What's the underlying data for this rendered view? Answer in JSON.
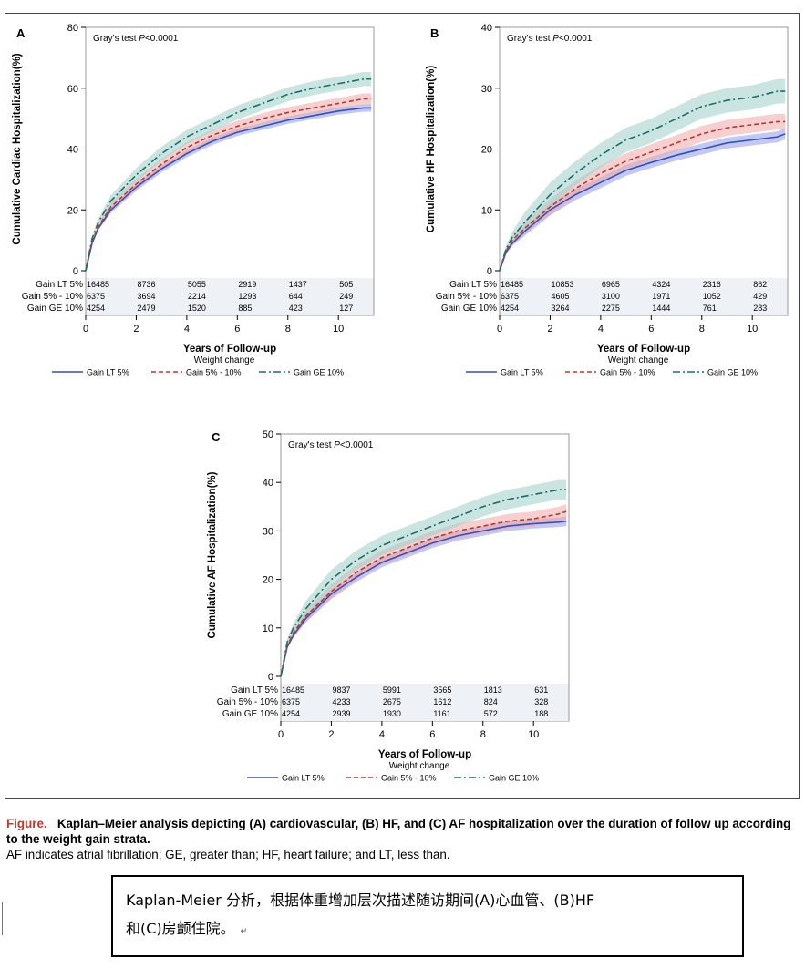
{
  "figure": {
    "legend_title": "Weight change",
    "x_axis_label": "Years of Follow-up",
    "gray_test_prefix": "Gray's test ",
    "gray_test_p": "P",
    "gray_test_value": "<0.0001"
  },
  "colors": {
    "lt5": "#3c4fb0",
    "g5_10": "#b03a3a",
    "ge10": "#1e6e66",
    "band_lt5": "#8f9be6",
    "band_g5_10": "#f0a8a8",
    "band_ge10": "#9fcfc8"
  },
  "chart_data": [
    {
      "panel": "A",
      "type": "line",
      "ylabel": "Cumulative Cardiac Hospitalization(%)",
      "xlabel": "Years of Follow-up",
      "xlim": [
        0,
        11.4
      ],
      "ylim": [
        0,
        80
      ],
      "x_ticks": [
        0,
        2,
        4,
        6,
        8,
        10
      ],
      "y_ticks": [
        0,
        20,
        40,
        60,
        80
      ],
      "annotation": "Gray's test P<0.0001",
      "x": [
        0,
        0.25,
        0.5,
        1,
        2,
        3,
        4,
        5,
        6,
        7,
        8,
        9,
        10,
        11,
        11.3
      ],
      "series": [
        {
          "name": "Gain LT 5%",
          "values": [
            0,
            9,
            14,
            20,
            27.5,
            33.5,
            38.5,
            42.5,
            45.5,
            47.5,
            49.5,
            51,
            52.5,
            53.5,
            53.5
          ],
          "band": 1.2
        },
        {
          "name": "Gain 5% - 10%",
          "values": [
            0,
            9.5,
            14.5,
            21,
            28.5,
            35,
            40.5,
            44.5,
            47.5,
            50,
            52,
            53.5,
            55,
            56.5,
            56.5
          ],
          "band": 1.8
        },
        {
          "name": "Gain GE 10%",
          "values": [
            0,
            10.5,
            16,
            23,
            31.5,
            38.5,
            44,
            48,
            52,
            55,
            58,
            60,
            61.5,
            63,
            63
          ],
          "band": 2.3
        }
      ],
      "risk_table": {
        "x": [
          0,
          2,
          4,
          6,
          8,
          10
        ],
        "rows": [
          {
            "label": "Gain LT 5%",
            "values": [
              "16485",
              "8736",
              "5055",
              "2919",
              "1437",
              "505"
            ]
          },
          {
            "label": "Gain 5% - 10%",
            "values": [
              "6375",
              "3694",
              "2214",
              "1293",
              "644",
              "249"
            ]
          },
          {
            "label": "Gain GE 10%",
            "values": [
              "4254",
              "2479",
              "1520",
              "885",
              "423",
              "127"
            ]
          }
        ]
      }
    },
    {
      "panel": "B",
      "type": "line",
      "ylabel": "Cumulative HF Hospitalization(%)",
      "xlabel": "Years of Follow-up",
      "xlim": [
        0,
        11.4
      ],
      "ylim": [
        0,
        40
      ],
      "x_ticks": [
        0,
        2,
        4,
        6,
        8,
        10
      ],
      "y_ticks": [
        0,
        10,
        20,
        30,
        40
      ],
      "annotation": "Gray's test P<0.0001",
      "x": [
        0,
        0.25,
        0.5,
        1,
        2,
        3,
        4,
        5,
        6,
        7,
        8,
        9,
        10,
        11,
        11.3
      ],
      "series": [
        {
          "name": "Gain LT 5%",
          "values": [
            0,
            3,
            4.5,
            6.5,
            10,
            12.5,
            14.5,
            16.5,
            17.8,
            19,
            20,
            21,
            21.5,
            22,
            22.5
          ],
          "band": 0.9
        },
        {
          "name": "Gain 5% - 10%",
          "values": [
            0,
            3.2,
            5,
            7,
            10.5,
            13.5,
            16,
            18,
            19.5,
            21,
            22.5,
            23.5,
            24,
            24.5,
            24.5
          ],
          "band": 1.3
        },
        {
          "name": "Gain GE 10%",
          "values": [
            0,
            3.5,
            5.5,
            8,
            12.5,
            16,
            19,
            21.5,
            23,
            25,
            27,
            28,
            28.5,
            29.5,
            29.5
          ],
          "band": 2
        }
      ],
      "risk_table": {
        "x": [
          0,
          2,
          4,
          6,
          8,
          10
        ],
        "rows": [
          {
            "label": "Gain LT 5%",
            "values": [
              "16485",
              "10853",
              "6965",
              "4324",
              "2316",
              "862"
            ]
          },
          {
            "label": "Gain 5% - 10%",
            "values": [
              "6375",
              "4605",
              "3100",
              "1971",
              "1052",
              "429"
            ]
          },
          {
            "label": "Gain GE 10%",
            "values": [
              "4254",
              "3264",
              "2275",
              "1444",
              "761",
              "283"
            ]
          }
        ]
      }
    },
    {
      "panel": "C",
      "type": "line",
      "ylabel": "Cumulative AF Hospitalization(%)",
      "xlabel": "Years of Follow-up",
      "xlim": [
        0,
        11.4
      ],
      "ylim": [
        0,
        50
      ],
      "x_ticks": [
        0,
        2,
        4,
        6,
        8,
        10
      ],
      "y_ticks": [
        0,
        10,
        20,
        30,
        40,
        50
      ],
      "annotation": "Gray's test P<0.0001",
      "x": [
        0,
        0.25,
        0.5,
        1,
        2,
        3,
        4,
        5,
        6,
        7,
        8,
        9,
        10,
        11,
        11.3
      ],
      "series": [
        {
          "name": "Gain LT 5%",
          "values": [
            0,
            6,
            8.5,
            12,
            17,
            20.5,
            23.5,
            25.5,
            27.5,
            29,
            30,
            31,
            31.5,
            31.8,
            32
          ],
          "band": 1
        },
        {
          "name": "Gain 5% - 10%",
          "values": [
            0,
            6.2,
            9,
            12.5,
            17.5,
            21.5,
            24.5,
            26.5,
            28.5,
            30,
            31,
            32,
            32.5,
            33.5,
            34
          ],
          "band": 1.5
        },
        {
          "name": "Gain GE 10%",
          "values": [
            0,
            7,
            10,
            14,
            20,
            24,
            27,
            29,
            31,
            33,
            35,
            36.5,
            37.5,
            38.5,
            38.5
          ],
          "band": 2
        }
      ],
      "risk_table": {
        "x": [
          0,
          2,
          4,
          6,
          8,
          10
        ],
        "rows": [
          {
            "label": "Gain LT 5%",
            "values": [
              "16485",
              "9837",
              "5991",
              "3565",
              "1813",
              "631"
            ]
          },
          {
            "label": "Gain 5% - 10%",
            "values": [
              "6375",
              "4233",
              "2675",
              "1612",
              "824",
              "328"
            ]
          },
          {
            "label": "Gain GE 10%",
            "values": [
              "4254",
              "2939",
              "1930",
              "1161",
              "572",
              "188"
            ]
          }
        ]
      }
    }
  ],
  "caption": {
    "label": "Figure.",
    "text": "Kaplan–Meier analysis depicting (A) cardiovascular, (B) HF, and (C) AF hospitalization over the duration of follow up according to the weight gain strata.",
    "abbreviations": "AF indicates atrial fibrillation; GE, greater than; HF, heart failure; and LT, less than."
  },
  "translation": {
    "line1": "Kaplan-Meier 分析，根据体重增加层次描述随访期间(A)心血管、(B)HF",
    "line2": "和(C)房颤住院。",
    "line2_mark": "↵"
  }
}
